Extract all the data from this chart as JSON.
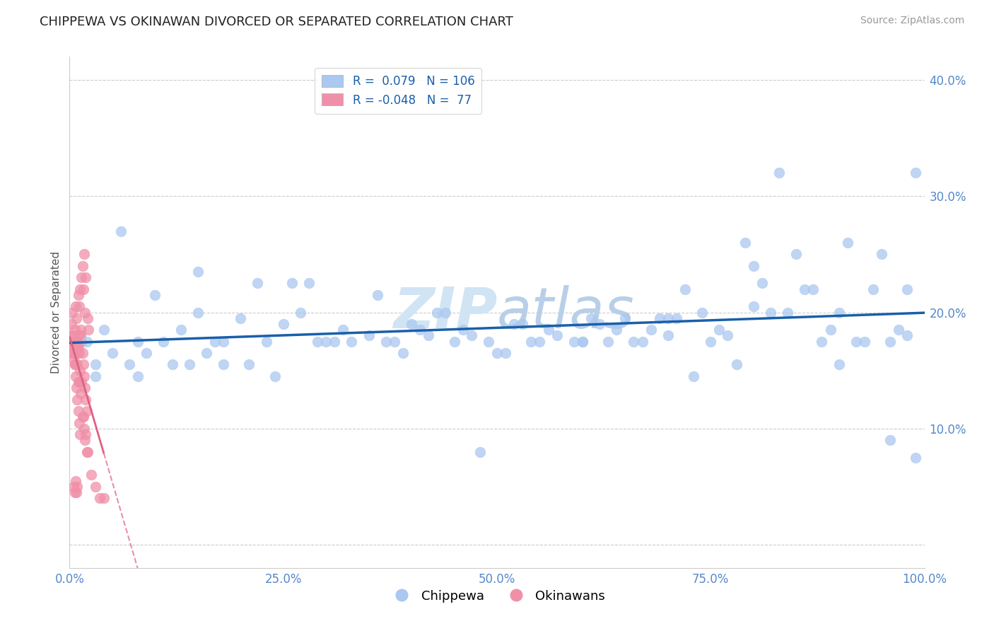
{
  "title": "CHIPPEWA VS OKINAWAN DIVORCED OR SEPARATED CORRELATION CHART",
  "source_text": "Source: ZipAtlas.com",
  "ylabel": "Divorced or Separated",
  "xlim": [
    0.0,
    1.0
  ],
  "ylim": [
    -0.02,
    0.42
  ],
  "xticks": [
    0.0,
    0.25,
    0.5,
    0.75,
    1.0
  ],
  "xtick_labels": [
    "0.0%",
    "25.0%",
    "50.0%",
    "75.0%",
    "100.0%"
  ],
  "yticks": [
    0.0,
    0.1,
    0.2,
    0.3,
    0.4
  ],
  "ytick_labels": [
    "",
    "10.0%",
    "20.0%",
    "30.0%",
    "40.0%"
  ],
  "r_chippewa": 0.079,
  "n_chippewa": 106,
  "r_okinawan": -0.048,
  "n_okinawan": 77,
  "chippewa_color": "#aac8f0",
  "okinawan_color": "#f090a8",
  "trend_chippewa_color": "#1a5faa",
  "trend_okinawan_color": "#e06080",
  "background_color": "#ffffff",
  "watermark_color": "#d0e4f4",
  "chippewa_x": [
    0.02,
    0.04,
    0.06,
    0.08,
    0.1,
    0.13,
    0.15,
    0.17,
    0.2,
    0.22,
    0.25,
    0.27,
    0.29,
    0.32,
    0.35,
    0.38,
    0.4,
    0.42,
    0.45,
    0.47,
    0.5,
    0.52,
    0.54,
    0.57,
    0.6,
    0.62,
    0.65,
    0.67,
    0.7,
    0.72,
    0.75,
    0.77,
    0.8,
    0.82,
    0.85,
    0.87,
    0.9,
    0.92,
    0.95,
    0.98,
    0.03,
    0.05,
    0.07,
    0.09,
    0.11,
    0.14,
    0.16,
    0.18,
    0.21,
    0.23,
    0.26,
    0.28,
    0.31,
    0.33,
    0.36,
    0.39,
    0.41,
    0.44,
    0.46,
    0.49,
    0.51,
    0.53,
    0.56,
    0.59,
    0.61,
    0.64,
    0.66,
    0.69,
    0.71,
    0.74,
    0.76,
    0.79,
    0.81,
    0.84,
    0.86,
    0.89,
    0.91,
    0.94,
    0.96,
    0.99,
    0.03,
    0.08,
    0.12,
    0.18,
    0.24,
    0.3,
    0.37,
    0.43,
    0.48,
    0.55,
    0.63,
    0.68,
    0.73,
    0.78,
    0.83,
    0.88,
    0.93,
    0.97,
    0.15,
    0.6,
    0.7,
    0.8,
    0.9,
    0.96,
    0.99,
    0.98
  ],
  "chippewa_y": [
    0.175,
    0.185,
    0.27,
    0.175,
    0.215,
    0.185,
    0.2,
    0.175,
    0.195,
    0.225,
    0.19,
    0.2,
    0.175,
    0.185,
    0.18,
    0.175,
    0.19,
    0.18,
    0.175,
    0.18,
    0.165,
    0.19,
    0.175,
    0.18,
    0.175,
    0.19,
    0.195,
    0.175,
    0.18,
    0.22,
    0.175,
    0.18,
    0.24,
    0.2,
    0.25,
    0.22,
    0.2,
    0.175,
    0.25,
    0.22,
    0.155,
    0.165,
    0.155,
    0.165,
    0.175,
    0.155,
    0.165,
    0.175,
    0.155,
    0.175,
    0.225,
    0.225,
    0.175,
    0.175,
    0.215,
    0.165,
    0.185,
    0.2,
    0.185,
    0.175,
    0.165,
    0.19,
    0.185,
    0.175,
    0.195,
    0.185,
    0.175,
    0.195,
    0.195,
    0.2,
    0.185,
    0.26,
    0.225,
    0.2,
    0.22,
    0.185,
    0.26,
    0.22,
    0.175,
    0.32,
    0.145,
    0.145,
    0.155,
    0.155,
    0.145,
    0.175,
    0.175,
    0.2,
    0.08,
    0.175,
    0.175,
    0.185,
    0.145,
    0.155,
    0.32,
    0.175,
    0.175,
    0.185,
    0.235,
    0.175,
    0.195,
    0.205,
    0.155,
    0.09,
    0.075,
    0.18
  ],
  "okinawan_x": [
    0.002,
    0.003,
    0.004,
    0.005,
    0.006,
    0.007,
    0.008,
    0.009,
    0.01,
    0.011,
    0.012,
    0.013,
    0.014,
    0.015,
    0.016,
    0.017,
    0.018,
    0.019,
    0.02,
    0.021,
    0.003,
    0.004,
    0.005,
    0.006,
    0.007,
    0.008,
    0.009,
    0.01,
    0.011,
    0.012,
    0.013,
    0.014,
    0.015,
    0.016,
    0.017,
    0.018,
    0.019,
    0.02,
    0.021,
    0.022,
    0.004,
    0.005,
    0.006,
    0.007,
    0.008,
    0.009,
    0.01,
    0.011,
    0.012,
    0.013,
    0.014,
    0.015,
    0.016,
    0.017,
    0.018,
    0.019,
    0.002,
    0.003,
    0.004,
    0.005,
    0.006,
    0.007,
    0.008,
    0.009,
    0.01,
    0.011,
    0.012,
    0.013,
    0.025,
    0.03,
    0.035,
    0.04,
    0.005,
    0.006,
    0.007,
    0.008,
    0.009
  ],
  "okinawan_y": [
    0.175,
    0.165,
    0.175,
    0.16,
    0.17,
    0.155,
    0.165,
    0.155,
    0.14,
    0.14,
    0.15,
    0.13,
    0.14,
    0.11,
    0.11,
    0.1,
    0.09,
    0.095,
    0.08,
    0.08,
    0.18,
    0.17,
    0.165,
    0.155,
    0.145,
    0.135,
    0.125,
    0.115,
    0.105,
    0.095,
    0.185,
    0.175,
    0.165,
    0.155,
    0.145,
    0.135,
    0.125,
    0.115,
    0.195,
    0.185,
    0.175,
    0.165,
    0.155,
    0.205,
    0.195,
    0.175,
    0.215,
    0.205,
    0.22,
    0.18,
    0.23,
    0.24,
    0.22,
    0.25,
    0.2,
    0.23,
    0.19,
    0.2,
    0.18,
    0.17,
    0.185,
    0.175,
    0.17,
    0.165,
    0.17,
    0.165,
    0.18,
    0.175,
    0.06,
    0.05,
    0.04,
    0.04,
    0.05,
    0.045,
    0.055,
    0.045,
    0.05
  ]
}
